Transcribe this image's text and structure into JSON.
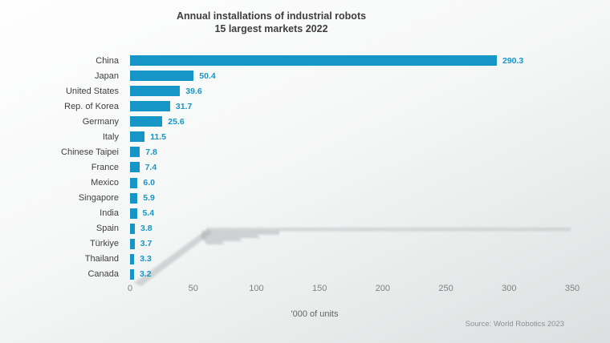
{
  "title": {
    "line1": "Annual installations of industrial robots",
    "line2": "15 largest markets 2022"
  },
  "chart_data": {
    "type": "bar",
    "orientation": "horizontal",
    "title": "Annual installations of industrial robots — 15 largest markets 2022",
    "categories": [
      "China",
      "Japan",
      "United States",
      "Rep. of Korea",
      "Germany",
      "Italy",
      "Chinese Taipei",
      "France",
      "Mexico",
      "Singapore",
      "India",
      "Spain",
      "Türkiye",
      "Thailand",
      "Canada"
    ],
    "values": [
      290.3,
      50.4,
      39.6,
      31.7,
      25.6,
      11.5,
      7.8,
      7.4,
      6.0,
      5.9,
      5.4,
      3.8,
      3.7,
      3.3,
      3.2
    ],
    "value_labels": [
      "290.3",
      "50.4",
      "39.6",
      "31.7",
      "25.6",
      "11.5",
      "7.8",
      "7.4",
      "6.0",
      "5.9",
      "5.4",
      "3.8",
      "3.7",
      "3.3",
      "3.2"
    ],
    "xlabel": "'000 of units",
    "ylabel": "",
    "xlim": [
      0,
      350
    ],
    "x_ticks": [
      "0",
      "50",
      "100",
      "150",
      "200",
      "250",
      "300",
      "350"
    ],
    "grid": false,
    "legend": false,
    "bar_color": "#1596c6"
  },
  "footer": {
    "source": "Source: World Robotics 2023"
  },
  "colors": {
    "bar": "#1596c6",
    "value_label": "#1596c6",
    "title_text": "#3e3e3e",
    "category_text": "#3f3f3f",
    "tick_text": "#818181",
    "watermark_gray": "#adb2b4"
  }
}
